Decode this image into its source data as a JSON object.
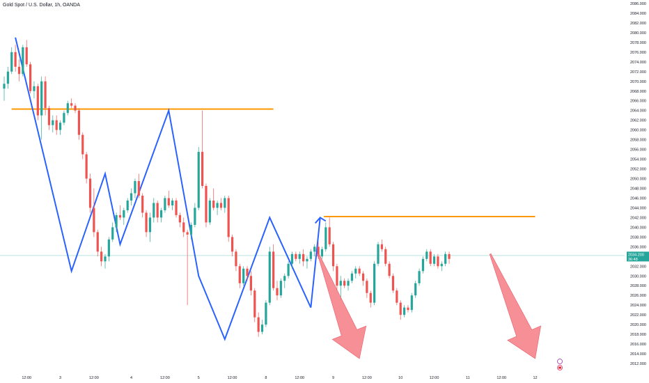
{
  "symbol": {
    "title": "Gold Spot / U.S. Dollar, 1h, OANDA"
  },
  "colors": {
    "up": "#26a69a",
    "down": "#ef5350",
    "trendline": "#2962ff",
    "resistance": "#ff9800",
    "arrow": "#f47b84",
    "price_badge": "#26a69a",
    "price_line": "#8ed4cd"
  },
  "chart_data": {
    "type": "candlestick",
    "title": "Gold Spot / U.S. Dollar, 1h, OANDA",
    "ylim": [
      2011,
      2086
    ],
    "y_ticks": [
      2012,
      2014,
      2016,
      2018,
      2020,
      2022,
      2024,
      2026,
      2028,
      2030,
      2032,
      2034,
      2036,
      2038,
      2040,
      2042,
      2044,
      2046,
      2048,
      2050,
      2052,
      2054,
      2056,
      2058,
      2060,
      2062,
      2064,
      2066,
      2068,
      2070,
      2072,
      2074,
      2076,
      2078,
      2080,
      2082,
      2084,
      2086
    ],
    "y_tick_labels": [
      "2012.000",
      "2014.000",
      "2016.000",
      "2018.000",
      "2020.000",
      "2022.000",
      "2024.000",
      "2026.000",
      "2028.000",
      "2030.000",
      "2032.000",
      "2034.000",
      "2036.000",
      "2038.000",
      "2040.000",
      "2042.000",
      "2044.000",
      "2046.000",
      "2048.000",
      "2050.000",
      "2052.000",
      "2054.000",
      "2056.000",
      "2058.000",
      "2060.000",
      "2062.000",
      "2064.000",
      "2066.000",
      "2068.000",
      "2070.000",
      "2072.000",
      "2074.000",
      "2076.000",
      "2078.000",
      "2080.000",
      "2082.000",
      "2084.000",
      "2086.000"
    ],
    "x_labels": [
      {
        "i": 6,
        "label": "12:00"
      },
      {
        "i": 15,
        "label": "3"
      },
      {
        "i": 24,
        "label": "12:00"
      },
      {
        "i": 34,
        "label": "4"
      },
      {
        "i": 43,
        "label": "12:00"
      },
      {
        "i": 52,
        "label": "5"
      },
      {
        "i": 61,
        "label": "12:00"
      },
      {
        "i": 70,
        "label": "8"
      },
      {
        "i": 79,
        "label": "12:00"
      },
      {
        "i": 88,
        "label": "9"
      },
      {
        "i": 97,
        "label": "12:00"
      },
      {
        "i": 106,
        "label": "10"
      },
      {
        "i": 115,
        "label": "12:00"
      },
      {
        "i": 124,
        "label": "11"
      },
      {
        "i": 133,
        "label": "12:00"
      },
      {
        "i": 142,
        "label": "12"
      }
    ],
    "last_price": 2034.2,
    "last_price_label": "2034.200",
    "countdown": "36:48",
    "candles": [
      [
        2068.5,
        2071,
        2066,
        2069.5
      ],
      [
        2069.5,
        2073,
        2068.5,
        2072
      ],
      [
        2072,
        2077,
        2071.5,
        2076
      ],
      [
        2076,
        2077.5,
        2072,
        2073
      ],
      [
        2073,
        2074.5,
        2070,
        2071.5
      ],
      [
        2071.5,
        2077.5,
        2071,
        2077
      ],
      [
        2077,
        2078.5,
        2073,
        2073.5
      ],
      [
        2073.5,
        2074,
        2067.5,
        2068
      ],
      [
        2068,
        2070,
        2066.5,
        2069
      ],
      [
        2069,
        2069.5,
        2062,
        2063
      ],
      [
        2063,
        2071,
        2058,
        2070
      ],
      [
        2070,
        2071,
        2063,
        2064.5
      ],
      [
        2064.5,
        2065,
        2060,
        2061
      ],
      [
        2061,
        2063,
        2059.5,
        2062
      ],
      [
        2062,
        2063,
        2059,
        2060
      ],
      [
        2060,
        2062,
        2059,
        2061.5
      ],
      [
        2061.5,
        2064,
        2061,
        2063.5
      ],
      [
        2063.5,
        2066,
        2063,
        2065.5
      ],
      [
        2065.5,
        2066.5,
        2064.5,
        2065
      ],
      [
        2065,
        2065.5,
        2063.5,
        2064
      ],
      [
        2064,
        2064.5,
        2058,
        2059
      ],
      [
        2059,
        2059.5,
        2054,
        2055
      ],
      [
        2055,
        2055.5,
        2049,
        2050
      ],
      [
        2050,
        2051,
        2043,
        2044
      ],
      [
        2044,
        2048,
        2038,
        2039
      ],
      [
        2039,
        2039.5,
        2034,
        2035
      ],
      [
        2035,
        2036,
        2032,
        2033
      ],
      [
        2033,
        2034.5,
        2031.5,
        2034
      ],
      [
        2034,
        2038,
        2033,
        2037.5
      ],
      [
        2037.5,
        2041,
        2037,
        2040
      ],
      [
        2040,
        2043,
        2039,
        2042.5
      ],
      [
        2042.5,
        2044.5,
        2041.5,
        2042
      ],
      [
        2042,
        2044,
        2040.5,
        2043.5
      ],
      [
        2043.5,
        2046,
        2043,
        2045.5
      ],
      [
        2045.5,
        2048,
        2044.5,
        2047
      ],
      [
        2047,
        2050,
        2046,
        2049.5
      ],
      [
        2049.5,
        2051,
        2046,
        2046.5
      ],
      [
        2046.5,
        2047,
        2042,
        2043
      ],
      [
        2043,
        2043.5,
        2038,
        2039
      ],
      [
        2039,
        2043,
        2037,
        2042
      ],
      [
        2042,
        2046,
        2041,
        2045
      ],
      [
        2045,
        2045.5,
        2041,
        2042
      ],
      [
        2042,
        2044,
        2041,
        2043.5
      ],
      [
        2043.5,
        2046.5,
        2043,
        2046
      ],
      [
        2046,
        2047.5,
        2044,
        2044.5
      ],
      [
        2044.5,
        2046,
        2043.5,
        2045.5
      ],
      [
        2045.5,
        2046,
        2042,
        2042.5
      ],
      [
        2042.5,
        2043,
        2040,
        2041
      ],
      [
        2041,
        2042,
        2038,
        2039
      ],
      [
        2039,
        2039.5,
        2024,
        2038.5
      ],
      [
        2038.5,
        2041,
        2037.5,
        2040.5
      ],
      [
        2040.5,
        2045,
        2040,
        2044
      ],
      [
        2044,
        2056.5,
        2043.5,
        2055.5
      ],
      [
        2055.5,
        2064,
        2048,
        2048.5
      ],
      [
        2048.5,
        2049,
        2040,
        2041
      ],
      [
        2041,
        2046,
        2040.5,
        2045.5
      ],
      [
        2045.5,
        2048,
        2043.5,
        2044
      ],
      [
        2044,
        2045.5,
        2042.5,
        2045
      ],
      [
        2045,
        2046,
        2043.5,
        2044
      ],
      [
        2044,
        2046.5,
        2043,
        2046
      ],
      [
        2046,
        2046.5,
        2037,
        2038
      ],
      [
        2038,
        2038.5,
        2034,
        2035
      ],
      [
        2035,
        2035.5,
        2031,
        2032
      ],
      [
        2032,
        2032.5,
        2027.5,
        2028.5
      ],
      [
        2028.5,
        2032,
        2028,
        2031.5
      ],
      [
        2031.5,
        2032,
        2029,
        2030
      ],
      [
        2030,
        2031,
        2026,
        2027
      ],
      [
        2027,
        2027.5,
        2020.5,
        2021.5
      ],
      [
        2021.5,
        2022.5,
        2017.5,
        2018.5
      ],
      [
        2018.5,
        2021,
        2018,
        2020
      ],
      [
        2020,
        2025,
        2019.5,
        2024.5
      ],
      [
        2024.5,
        2036,
        2024,
        2035
      ],
      [
        2035,
        2036.5,
        2027,
        2027.5
      ],
      [
        2027.5,
        2029,
        2025,
        2026
      ],
      [
        2026,
        2029.5,
        2025.5,
        2029
      ],
      [
        2029,
        2030.5,
        2027.5,
        2030
      ],
      [
        2030,
        2033,
        2029.5,
        2032.5
      ],
      [
        2032.5,
        2035,
        2031.5,
        2034.5
      ],
      [
        2034.5,
        2035,
        2033,
        2033.5
      ],
      [
        2033.5,
        2035,
        2032.5,
        2034.5
      ],
      [
        2034.5,
        2035.5,
        2032,
        2033
      ],
      [
        2033,
        2034,
        2031.5,
        2033.5
      ],
      [
        2033.5,
        2035.5,
        2033,
        2035
      ],
      [
        2035,
        2036.5,
        2034,
        2036
      ],
      [
        2036,
        2037,
        2033.5,
        2034
      ],
      [
        2034,
        2036,
        2033.5,
        2035.5
      ],
      [
        2035.5,
        2041,
        2035,
        2040
      ],
      [
        2040,
        2042,
        2036,
        2036.5
      ],
      [
        2036.5,
        2037,
        2031,
        2032
      ],
      [
        2032,
        2032.5,
        2027,
        2028
      ],
      [
        2028,
        2030,
        2025,
        2029
      ],
      [
        2029,
        2029.5,
        2027.5,
        2028
      ],
      [
        2028,
        2029.5,
        2027,
        2029
      ],
      [
        2029,
        2031,
        2028.5,
        2030.5
      ],
      [
        2030.5,
        2032,
        2029.5,
        2031.5
      ],
      [
        2031.5,
        2032,
        2030,
        2030.5
      ],
      [
        2030.5,
        2031,
        2028,
        2029
      ],
      [
        2029,
        2029.5,
        2025.5,
        2026.5
      ],
      [
        2026.5,
        2027,
        2023.5,
        2024.5
      ],
      [
        2024.5,
        2033,
        2024,
        2032.5
      ],
      [
        2032.5,
        2037,
        2032,
        2036.5
      ],
      [
        2036.5,
        2037.5,
        2035,
        2035.5
      ],
      [
        2035.5,
        2036,
        2032,
        2032.5
      ],
      [
        2032.5,
        2033,
        2029.5,
        2030
      ],
      [
        2030,
        2030.5,
        2026.5,
        2027
      ],
      [
        2027,
        2027.5,
        2024,
        2024.5
      ],
      [
        2024.5,
        2025,
        2021,
        2022
      ],
      [
        2022,
        2024,
        2021.5,
        2023.5
      ],
      [
        2023.5,
        2024,
        2022.5,
        2023
      ],
      [
        2023,
        2026.5,
        2022.5,
        2026
      ],
      [
        2026,
        2029,
        2025.5,
        2028.5
      ],
      [
        2028.5,
        2031.5,
        2028,
        2031
      ],
      [
        2031,
        2034,
        2030.5,
        2033.5
      ],
      [
        2033.5,
        2035.5,
        2033,
        2035
      ],
      [
        2035,
        2035.5,
        2032,
        2032.5
      ],
      [
        2032.5,
        2034.5,
        2032,
        2034
      ],
      [
        2034,
        2034.5,
        2031.5,
        2032
      ],
      [
        2032,
        2033,
        2031,
        2032.5
      ],
      [
        2032.5,
        2035,
        2032,
        2034.5
      ],
      [
        2034.5,
        2035,
        2032.5,
        2033.5
      ]
    ],
    "annotations": {
      "resistance_lines": [
        {
          "x1": 2,
          "x2": 72,
          "y": 2064.3
        },
        {
          "x1": 85.5,
          "x2": 142,
          "y": 2042.2
        }
      ],
      "trend_path_1": [
        [
          3,
          2079
        ],
        [
          18,
          2031
        ],
        [
          27,
          2051
        ],
        [
          31,
          2036.5
        ],
        [
          44,
          2064
        ],
        [
          52,
          2030
        ],
        [
          59,
          2017
        ],
        [
          71,
          2042
        ],
        [
          82,
          2023.5
        ]
      ],
      "trend_path_2": [
        [
          82,
          2023.5
        ],
        [
          84.5,
          2042
        ]
      ],
      "down_arrows": [
        {
          "from": [
            84,
            2034.5
          ],
          "to": [
            95,
            2013
          ]
        },
        {
          "from": [
            130,
            2034.5
          ],
          "to": [
            142,
            2013
          ]
        }
      ]
    }
  }
}
